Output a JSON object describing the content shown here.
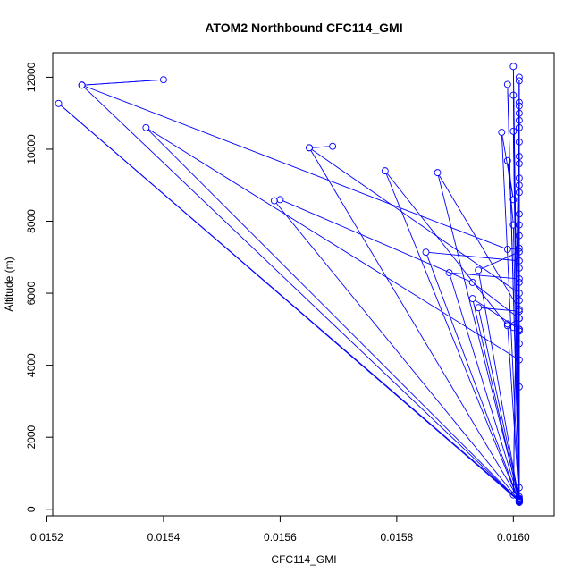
{
  "chart_data": {
    "type": "scatter",
    "title": "ATOM2 Northbound CFC114_GMI",
    "xlabel": "CFC114_GMI",
    "ylabel": "Altitude (m)",
    "xlim": [
      0.01521,
      0.01607
    ],
    "ylim": [
      -180,
      12680
    ],
    "x_ticks": [
      0.0152,
      0.0154,
      0.0156,
      0.0158,
      0.016
    ],
    "x_tick_labels": [
      "0.0152",
      "0.0154",
      "0.0156",
      "0.0158",
      "0.0160"
    ],
    "y_ticks": [
      0,
      2000,
      4000,
      6000,
      8000,
      10000,
      12000
    ],
    "y_tick_labels": [
      "0",
      "2000",
      "4000",
      "6000",
      "8000",
      "10000",
      "12000"
    ],
    "grid": false,
    "legend": "none",
    "color": "#0000ff",
    "marker": "open-circle",
    "connected": true,
    "series": [
      {
        "points": [
          [
            0.01601,
            200
          ],
          [
            0.016,
            11500
          ],
          [
            0.01601,
            600
          ],
          [
            0.01601,
            12000
          ],
          [
            0.01601,
            250
          ],
          [
            0.01599,
            11800
          ],
          [
            0.01601,
            300
          ],
          [
            0.016,
            12300
          ],
          [
            0.01601,
            200
          ],
          [
            0.01601,
            11300
          ],
          [
            0.016,
            400
          ],
          [
            0.01601,
            11000
          ],
          [
            0.01601,
            250
          ],
          [
            0.016,
            10500
          ],
          [
            0.01601,
            350
          ],
          [
            0.01601,
            9800
          ],
          [
            0.01601,
            200
          ],
          [
            0.01598,
            10470
          ],
          [
            0.016,
            8600
          ],
          [
            0.01599,
            9680
          ],
          [
            0.016,
            7900
          ],
          [
            0.01601,
            250
          ],
          [
            0.01522,
            11270
          ],
          [
            0.01601,
            220
          ],
          [
            0.01526,
            11780
          ],
          [
            0.0154,
            11930
          ],
          [
            0.01526,
            11780
          ],
          [
            0.01599,
            7220
          ],
          [
            0.01601,
            7250
          ],
          [
            0.01601,
            230
          ],
          [
            0.01537,
            10600
          ],
          [
            0.01601,
            4150
          ],
          [
            0.01601,
            5000
          ],
          [
            0.01601,
            260
          ],
          [
            0.01565,
            10040
          ],
          [
            0.01569,
            10080
          ],
          [
            0.01565,
            10040
          ],
          [
            0.01601,
            6000
          ],
          [
            0.01601,
            6300
          ],
          [
            0.01601,
            200
          ],
          [
            0.01578,
            9400
          ],
          [
            0.01599,
            5100
          ],
          [
            0.01601,
            5300
          ],
          [
            0.01601,
            280
          ],
          [
            0.01587,
            9350
          ],
          [
            0.01601,
            5550
          ],
          [
            0.01601,
            5800
          ],
          [
            0.01601,
            240
          ],
          [
            0.01559,
            8570
          ],
          [
            0.0156,
            8600
          ],
          [
            0.01593,
            6300
          ],
          [
            0.01601,
            5300
          ],
          [
            0.01601,
            230
          ],
          [
            0.01594,
            6640
          ],
          [
            0.01601,
            7150
          ],
          [
            0.01601,
            210
          ],
          [
            0.01585,
            7140
          ],
          [
            0.01601,
            6900
          ],
          [
            0.01601,
            250
          ],
          [
            0.01589,
            6570
          ],
          [
            0.01601,
            6400
          ],
          [
            0.01601,
            300
          ],
          [
            0.01594,
            5600
          ],
          [
            0.01601,
            5500
          ],
          [
            0.01601,
            220
          ],
          [
            0.01593,
            5850
          ],
          [
            0.01601,
            5000
          ],
          [
            0.01601,
            210
          ],
          [
            0.01599,
            5150
          ],
          [
            0.016,
            5050
          ],
          [
            0.01601,
            4950
          ],
          [
            0.01601,
            190
          ],
          [
            0.01601,
            8200
          ],
          [
            0.01601,
            9200
          ],
          [
            0.01601,
            10200
          ],
          [
            0.01601,
            11200
          ],
          [
            0.01601,
            7600
          ],
          [
            0.01601,
            8800
          ],
          [
            0.01601,
            9600
          ],
          [
            0.01601,
            10800
          ],
          [
            0.01601,
            6700
          ],
          [
            0.01601,
            7900
          ],
          [
            0.01601,
            4600
          ],
          [
            0.01601,
            3400
          ],
          [
            0.01601,
            11900
          ],
          [
            0.01601,
            10600
          ],
          [
            0.01601,
            9000
          ],
          [
            0.01601,
            210
          ]
        ]
      }
    ]
  }
}
